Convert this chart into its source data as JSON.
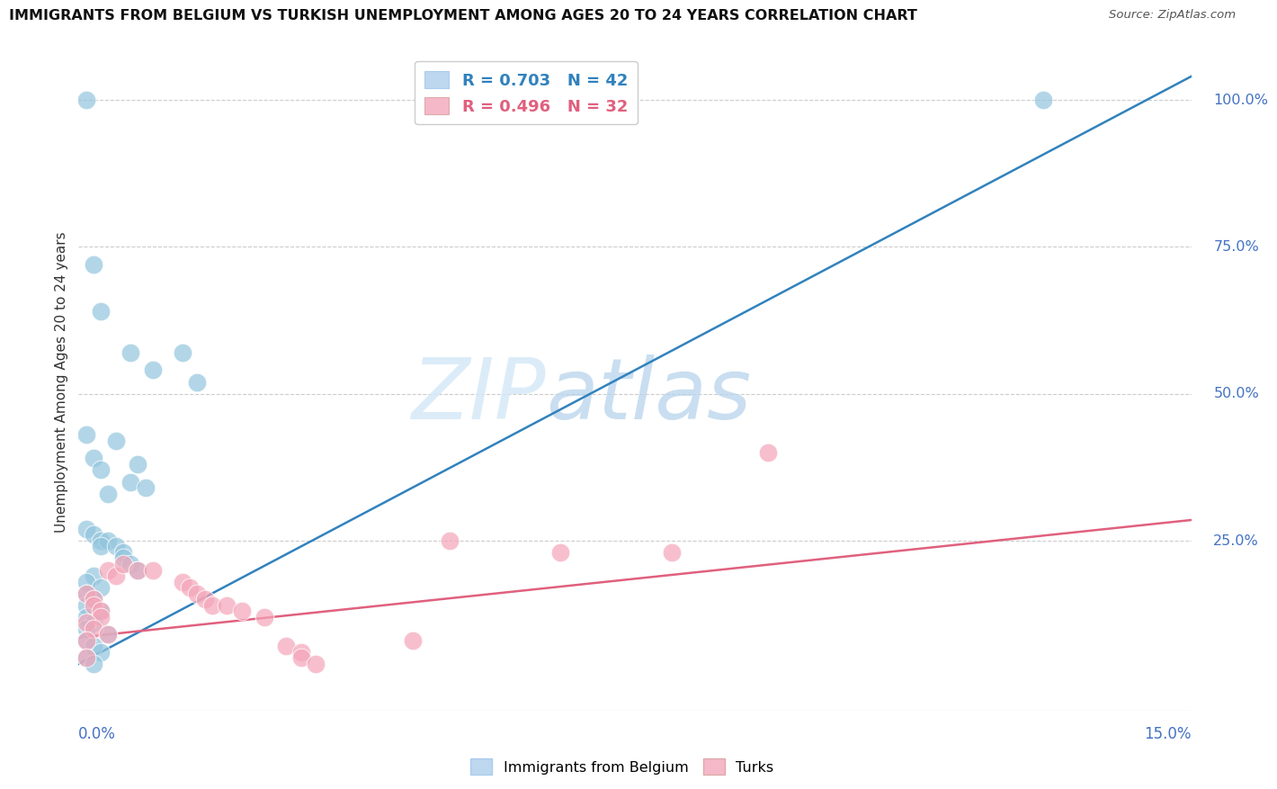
{
  "title": "IMMIGRANTS FROM BELGIUM VS TURKISH UNEMPLOYMENT AMONG AGES 20 TO 24 YEARS CORRELATION CHART",
  "source": "Source: ZipAtlas.com",
  "ylabel": "Unemployment Among Ages 20 to 24 years",
  "ylabel_right_ticks": [
    "100.0%",
    "75.0%",
    "50.0%",
    "25.0%"
  ],
  "ylabel_right_values": [
    1.0,
    0.75,
    0.5,
    0.25
  ],
  "xmin": 0.0,
  "xmax": 0.15,
  "ymin": -0.04,
  "ymax": 1.08,
  "blue_scatter_color": "#92c5de",
  "blue_line_color": "#3182bd",
  "pink_scatter_color": "#f4a5b8",
  "pink_line_color": "#e0607e",
  "legend_blue_fill": "#bdd7ee",
  "legend_pink_fill": "#f4b8c8",
  "blue_label": "R = 0.703   N = 42",
  "pink_label": "R = 0.496   N = 32",
  "legend_label_blue": "Immigrants from Belgium",
  "legend_label_pink": "Turks",
  "title_fontsize": 11.5,
  "source_fontsize": 9.5,
  "right_axis_color": "#4472c4",
  "grid_color": "#cccccc",
  "background_color": "#ffffff",
  "blue_line_x": [
    0.0,
    0.15
  ],
  "blue_line_y": [
    0.04,
    1.04
  ],
  "pink_line_x": [
    0.0,
    0.15
  ],
  "pink_line_y": [
    0.085,
    0.285
  ],
  "blue_scatter": [
    [
      0.001,
      1.0
    ],
    [
      0.002,
      0.72
    ],
    [
      0.003,
      0.64
    ],
    [
      0.007,
      0.57
    ],
    [
      0.01,
      0.54
    ],
    [
      0.005,
      0.42
    ],
    [
      0.002,
      0.39
    ],
    [
      0.008,
      0.38
    ],
    [
      0.014,
      0.57
    ],
    [
      0.016,
      0.52
    ],
    [
      0.001,
      0.43
    ],
    [
      0.003,
      0.37
    ],
    [
      0.007,
      0.35
    ],
    [
      0.009,
      0.34
    ],
    [
      0.004,
      0.33
    ],
    [
      0.001,
      0.27
    ],
    [
      0.002,
      0.26
    ],
    [
      0.003,
      0.25
    ],
    [
      0.004,
      0.25
    ],
    [
      0.003,
      0.24
    ],
    [
      0.005,
      0.24
    ],
    [
      0.006,
      0.23
    ],
    [
      0.006,
      0.22
    ],
    [
      0.007,
      0.21
    ],
    [
      0.008,
      0.2
    ],
    [
      0.002,
      0.19
    ],
    [
      0.001,
      0.18
    ],
    [
      0.003,
      0.17
    ],
    [
      0.001,
      0.16
    ],
    [
      0.002,
      0.15
    ],
    [
      0.001,
      0.14
    ],
    [
      0.003,
      0.13
    ],
    [
      0.001,
      0.12
    ],
    [
      0.002,
      0.11
    ],
    [
      0.001,
      0.1
    ],
    [
      0.004,
      0.09
    ],
    [
      0.001,
      0.08
    ],
    [
      0.002,
      0.07
    ],
    [
      0.003,
      0.06
    ],
    [
      0.001,
      0.05
    ],
    [
      0.002,
      0.04
    ],
    [
      0.13,
      1.0
    ]
  ],
  "pink_scatter": [
    [
      0.001,
      0.16
    ],
    [
      0.002,
      0.15
    ],
    [
      0.002,
      0.14
    ],
    [
      0.003,
      0.13
    ],
    [
      0.003,
      0.12
    ],
    [
      0.001,
      0.11
    ],
    [
      0.004,
      0.2
    ],
    [
      0.005,
      0.19
    ],
    [
      0.006,
      0.21
    ],
    [
      0.008,
      0.2
    ],
    [
      0.01,
      0.2
    ],
    [
      0.002,
      0.1
    ],
    [
      0.004,
      0.09
    ],
    [
      0.001,
      0.08
    ],
    [
      0.014,
      0.18
    ],
    [
      0.015,
      0.17
    ],
    [
      0.016,
      0.16
    ],
    [
      0.017,
      0.15
    ],
    [
      0.018,
      0.14
    ],
    [
      0.02,
      0.14
    ],
    [
      0.022,
      0.13
    ],
    [
      0.025,
      0.12
    ],
    [
      0.045,
      0.08
    ],
    [
      0.05,
      0.25
    ],
    [
      0.065,
      0.23
    ],
    [
      0.08,
      0.23
    ],
    [
      0.093,
      0.4
    ],
    [
      0.028,
      0.07
    ],
    [
      0.03,
      0.06
    ],
    [
      0.001,
      0.05
    ],
    [
      0.03,
      0.05
    ],
    [
      0.032,
      0.04
    ]
  ]
}
